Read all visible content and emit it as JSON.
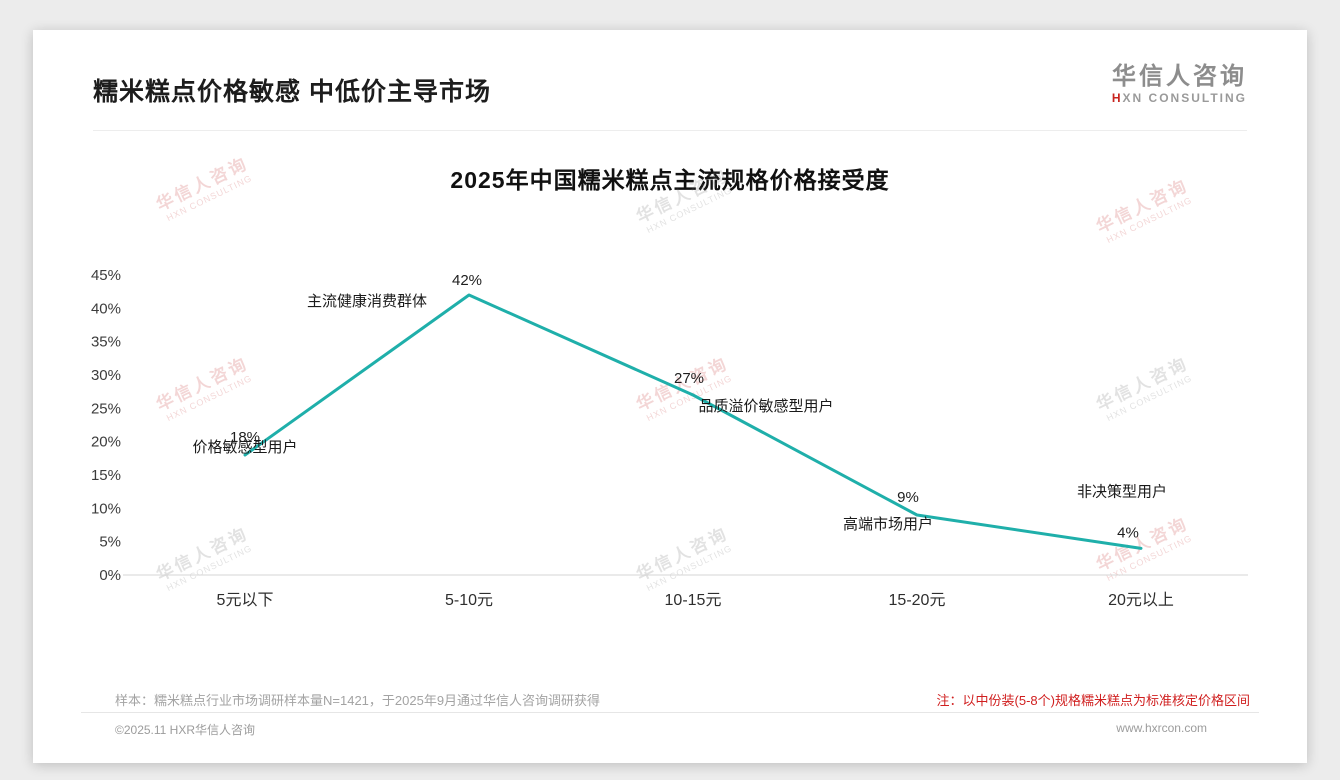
{
  "page": {
    "title": "糯米糕点价格敏感 中低价主导市场",
    "logo": {
      "cn": "华信人咨询",
      "en_mark": "H",
      "en_rest": "XN CONSULTING"
    }
  },
  "chart_data": {
    "type": "line",
    "title": "2025年中国糯米糕点主流规格价格接受度",
    "categories": [
      "5元以下",
      "5-10元",
      "10-15元",
      "15-20元",
      "20元以上"
    ],
    "values": [
      18,
      42,
      27,
      9,
      4
    ],
    "value_labels": [
      "18%",
      "42%",
      "27%",
      "9%",
      "4%"
    ],
    "point_annotations": [
      "价格敏感型用户",
      "主流健康消费群体",
      "品质溢价敏感型用户",
      "高端市场用户",
      "非决策型用户"
    ],
    "xlabel": "",
    "ylabel": "",
    "ylim": [
      0,
      45
    ],
    "ytick_step": 5,
    "ytick_suffix": "%",
    "grid": false,
    "legend": "none",
    "line_color": "#1fafaa"
  },
  "watermark": {
    "cn": "华信人咨询",
    "en": "HXN CONSULTING"
  },
  "footnotes": {
    "sample": "样本：糯米糕点行业市场调研样本量N=1421，于2025年9月通过华信人咨询调研获得",
    "note": "注：以中份装(5-8个)规格糯米糕点为标准核定价格区间"
  },
  "footer": {
    "copyright": "©2025.11 HXR华信人咨询",
    "website": "www.hxrcon.com"
  }
}
